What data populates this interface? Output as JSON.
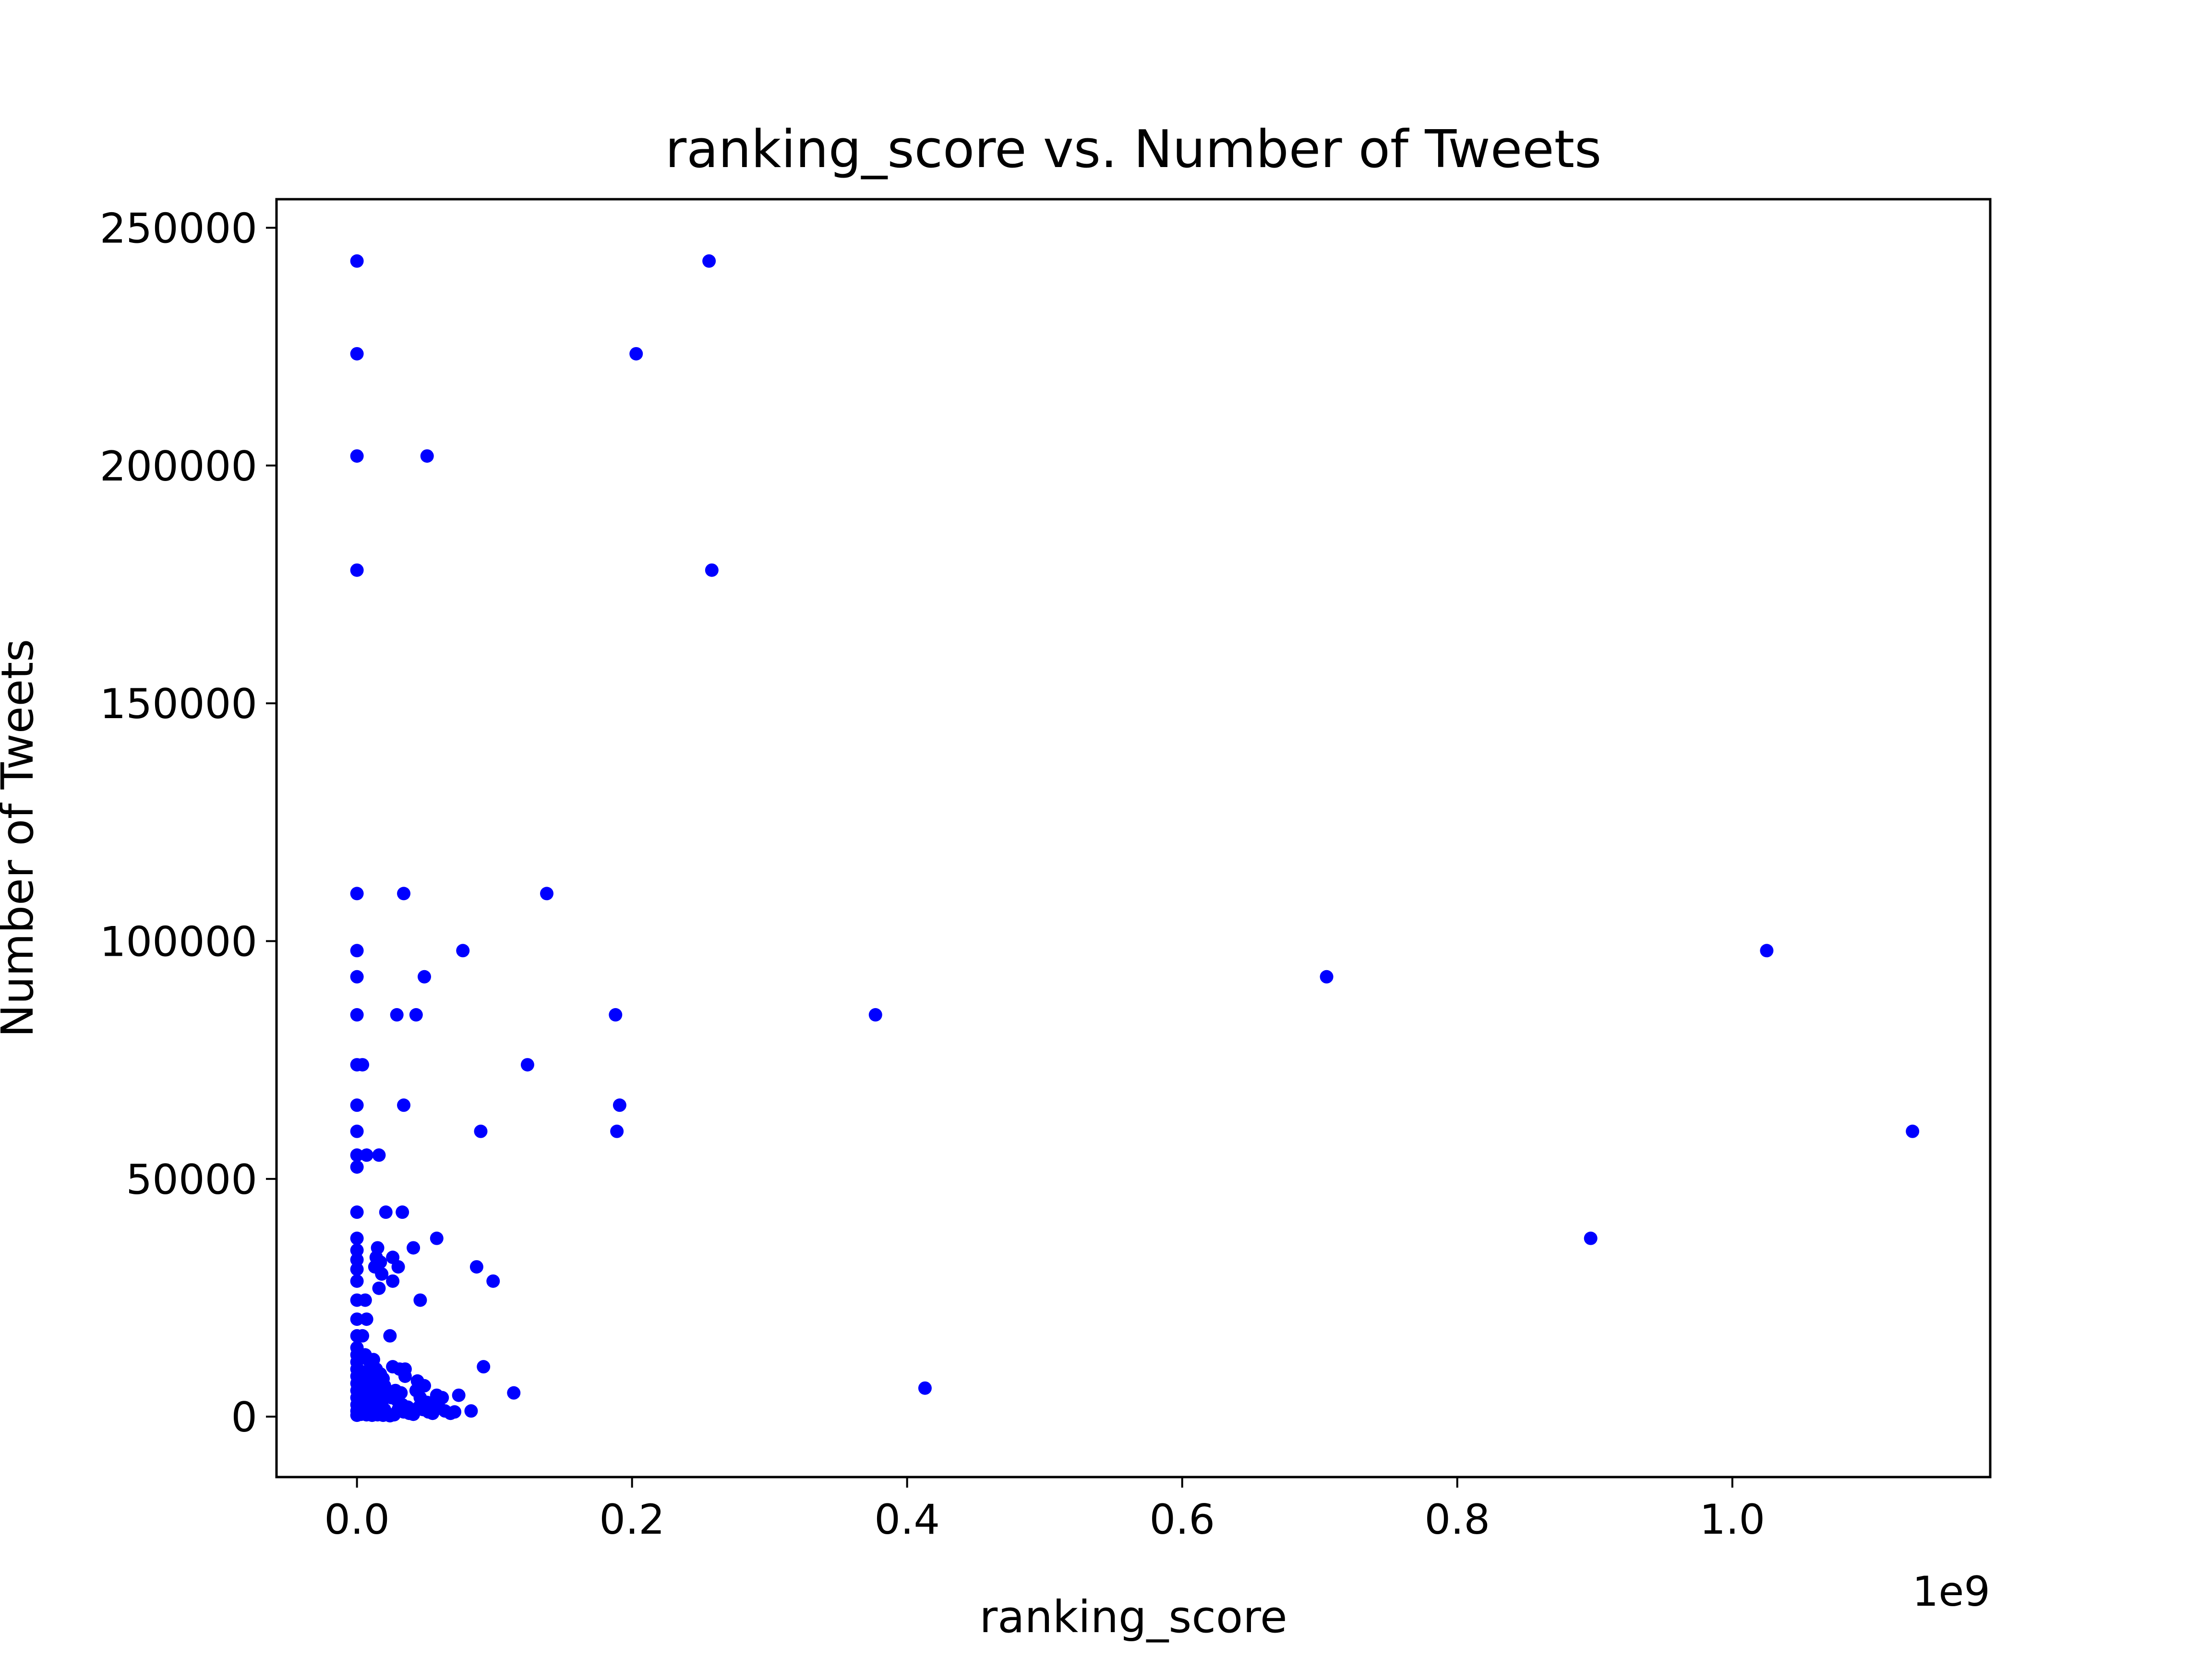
{
  "chart_data": {
    "type": "scatter",
    "title": "ranking_score vs. Number of Tweets",
    "xlabel": "ranking_score",
    "ylabel": "Number of Tweets",
    "x_offset_label": "1e9",
    "x_unit_multiplier": 1000000000,
    "xlim": [
      -0.0585,
      1.1875
    ],
    "ylim": [
      -12700,
      256000
    ],
    "x_ticks": [
      0.0,
      0.2,
      0.4,
      0.6,
      0.8,
      1.0
    ],
    "x_tick_labels": [
      "0.0",
      "0.2",
      "0.4",
      "0.6",
      "0.8",
      "1.0"
    ],
    "y_ticks": [
      0,
      50000,
      100000,
      150000,
      200000,
      250000
    ],
    "y_tick_labels": [
      "0",
      "50000",
      "100000",
      "150000",
      "200000",
      "250000"
    ],
    "grid": false,
    "legend": "none",
    "marker_color": "#0000ff",
    "series": [
      {
        "points": [
          [
            0.0,
            243000
          ],
          [
            0.0,
            223500
          ],
          [
            0.0,
            202000
          ],
          [
            0.0,
            178000
          ],
          [
            0.0,
            110000
          ],
          [
            0.0,
            98000
          ],
          [
            0.0,
            92500
          ],
          [
            0.0,
            84500
          ],
          [
            0.0,
            74000
          ],
          [
            0.0,
            65500
          ],
          [
            0.0,
            60000
          ],
          [
            0.0,
            55000
          ],
          [
            0.0,
            52500
          ],
          [
            0.0,
            43000
          ],
          [
            0.0,
            37500
          ],
          [
            0.0,
            35000
          ],
          [
            0.0,
            33000
          ],
          [
            0.0,
            31000
          ],
          [
            0.0,
            28500
          ],
          [
            0.0,
            24500
          ],
          [
            0.0,
            20500
          ],
          [
            0.0,
            17000
          ],
          [
            0.0,
            14500
          ],
          [
            0.0,
            13000
          ],
          [
            0.0,
            11500
          ],
          [
            0.0,
            10000
          ],
          [
            0.0,
            8500
          ],
          [
            0.0,
            7000
          ],
          [
            0.0,
            5500
          ],
          [
            0.0,
            4000
          ],
          [
            0.0,
            2500
          ],
          [
            0.0,
            1200
          ],
          [
            0.0,
            300
          ],
          [
            0.004,
            74000
          ],
          [
            0.007,
            55000
          ],
          [
            0.006,
            24500
          ],
          [
            0.007,
            20500
          ],
          [
            0.004,
            17000
          ],
          [
            0.006,
            13000
          ],
          [
            0.008,
            12000
          ],
          [
            0.01,
            11000
          ],
          [
            0.003,
            9500
          ],
          [
            0.005,
            8500
          ],
          [
            0.008,
            8000
          ],
          [
            0.011,
            9000
          ],
          [
            0.012,
            7500
          ],
          [
            0.003,
            6500
          ],
          [
            0.006,
            6000
          ],
          [
            0.009,
            5500
          ],
          [
            0.013,
            6000
          ],
          [
            0.015,
            5000
          ],
          [
            0.004,
            4500
          ],
          [
            0.007,
            4000
          ],
          [
            0.01,
            3500
          ],
          [
            0.014,
            4000
          ],
          [
            0.018,
            3000
          ],
          [
            0.003,
            3000
          ],
          [
            0.005,
            2500
          ],
          [
            0.008,
            2000
          ],
          [
            0.012,
            2500
          ],
          [
            0.016,
            2000
          ],
          [
            0.02,
            1500
          ],
          [
            0.004,
            1500
          ],
          [
            0.006,
            1000
          ],
          [
            0.009,
            800
          ],
          [
            0.013,
            1000
          ],
          [
            0.017,
            900
          ],
          [
            0.022,
            700
          ],
          [
            0.003,
            500
          ],
          [
            0.007,
            400
          ],
          [
            0.011,
            300
          ],
          [
            0.015,
            400
          ],
          [
            0.019,
            300
          ],
          [
            0.024,
            200
          ],
          [
            0.027,
            400
          ],
          [
            0.016,
            55000
          ],
          [
            0.021,
            43000
          ],
          [
            0.015,
            35500
          ],
          [
            0.014,
            33500
          ],
          [
            0.017,
            32500
          ],
          [
            0.013,
            31500
          ],
          [
            0.018,
            30000
          ],
          [
            0.016,
            27000
          ],
          [
            0.012,
            12000
          ],
          [
            0.014,
            10000
          ],
          [
            0.017,
            9000
          ],
          [
            0.019,
            8000
          ],
          [
            0.02,
            6500
          ],
          [
            0.022,
            5500
          ],
          [
            0.029,
            84500
          ],
          [
            0.034,
            110000
          ],
          [
            0.034,
            65500
          ],
          [
            0.033,
            43000
          ],
          [
            0.026,
            33500
          ],
          [
            0.03,
            31500
          ],
          [
            0.026,
            28500
          ],
          [
            0.024,
            17000
          ],
          [
            0.026,
            10500
          ],
          [
            0.031,
            10000
          ],
          [
            0.035,
            10000
          ],
          [
            0.035,
            8500
          ],
          [
            0.028,
            5500
          ],
          [
            0.032,
            5000
          ],
          [
            0.025,
            4000
          ],
          [
            0.029,
            3500
          ],
          [
            0.033,
            2500
          ],
          [
            0.037,
            2000
          ],
          [
            0.03,
            1500
          ],
          [
            0.034,
            1000
          ],
          [
            0.038,
            700
          ],
          [
            0.041,
            500
          ],
          [
            0.043,
            84500
          ],
          [
            0.041,
            35500
          ],
          [
            0.046,
            24500
          ],
          [
            0.044,
            7500
          ],
          [
            0.049,
            6500
          ],
          [
            0.043,
            5500
          ],
          [
            0.046,
            4000
          ],
          [
            0.051,
            3000
          ],
          [
            0.045,
            2000
          ],
          [
            0.048,
            1500
          ],
          [
            0.052,
            1000
          ],
          [
            0.055,
            700
          ],
          [
            0.049,
            92500
          ],
          [
            0.051,
            202000
          ],
          [
            0.058,
            37500
          ],
          [
            0.058,
            4500
          ],
          [
            0.062,
            4000
          ],
          [
            0.056,
            2500
          ],
          [
            0.06,
            1800
          ],
          [
            0.064,
            1200
          ],
          [
            0.068,
            700
          ],
          [
            0.071,
            1000
          ],
          [
            0.077,
            98000
          ],
          [
            0.074,
            4500
          ],
          [
            0.083,
            1200
          ],
          [
            0.087,
            31500
          ],
          [
            0.09,
            60000
          ],
          [
            0.092,
            10500
          ],
          [
            0.099,
            28500
          ],
          [
            0.114,
            5000
          ],
          [
            0.124,
            74000
          ],
          [
            0.138,
            110000
          ],
          [
            0.188,
            84500
          ],
          [
            0.189,
            60000
          ],
          [
            0.191,
            65500
          ],
          [
            0.203,
            223500
          ],
          [
            0.256,
            243000
          ],
          [
            0.258,
            178000
          ],
          [
            0.377,
            84500
          ],
          [
            0.413,
            6000
          ],
          [
            0.705,
            92500
          ],
          [
            0.897,
            37500
          ],
          [
            1.025,
            98000
          ],
          [
            1.131,
            60000
          ]
        ]
      }
    ]
  }
}
